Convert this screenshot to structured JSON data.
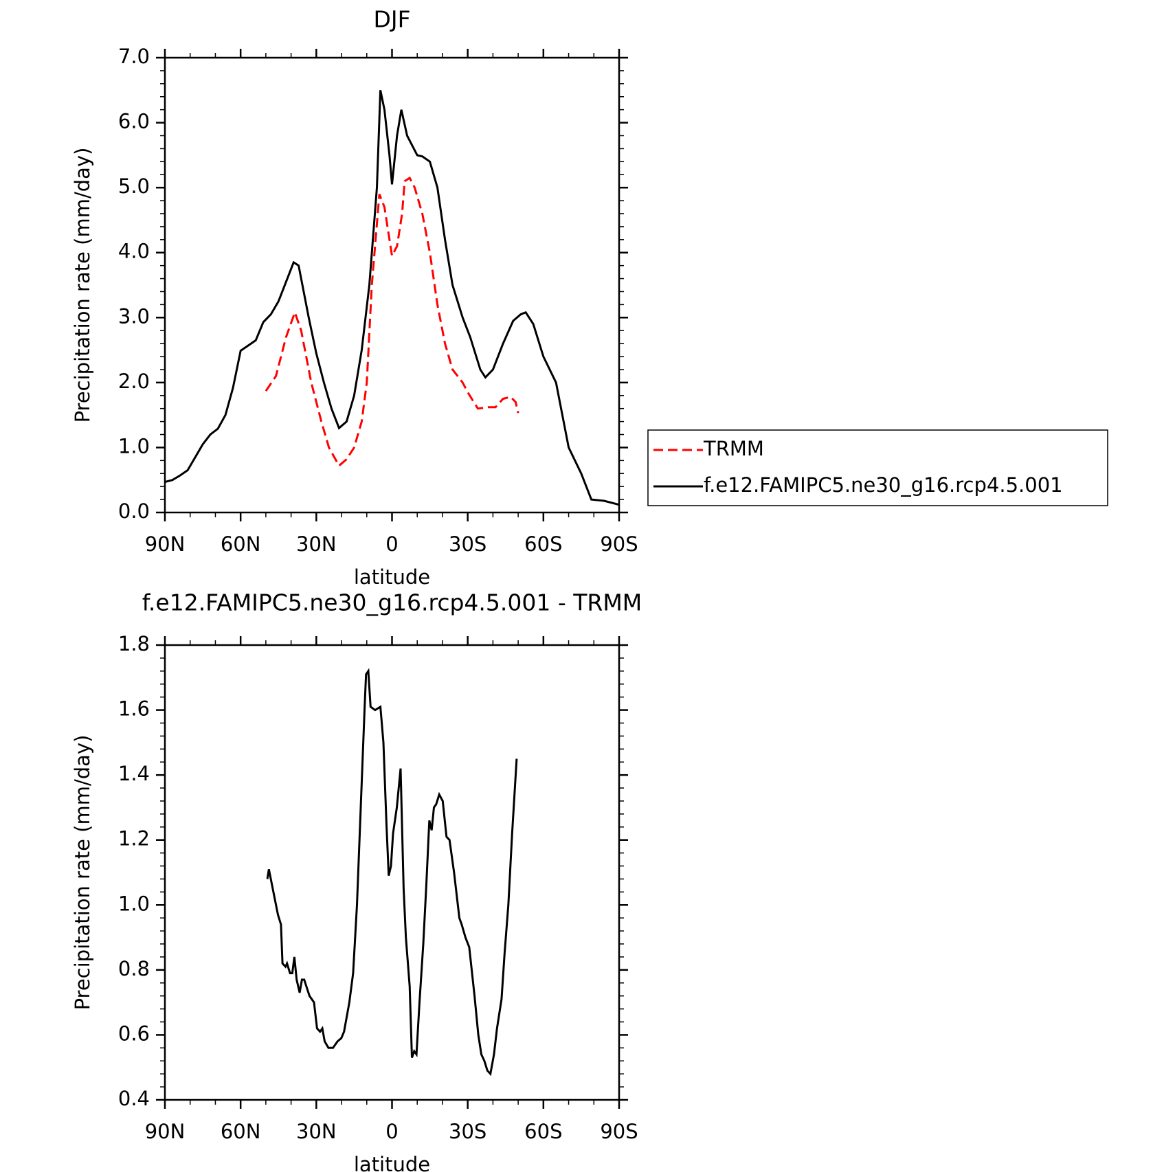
{
  "chart_data": [
    {
      "type": "line",
      "title": "DJF",
      "x_label": "latitude",
      "y_label": "Precipitation rate (mm/day)",
      "xlim": [
        90,
        -90
      ],
      "xticks": [
        {
          "value": 90,
          "label": "90N"
        },
        {
          "value": 60,
          "label": "60N"
        },
        {
          "value": 30,
          "label": "30N"
        },
        0,
        {
          "value": -30,
          "label": "30S"
        },
        {
          "value": -60,
          "label": "60S"
        },
        {
          "value": -90,
          "label": "90S"
        }
      ],
      "ylim": [
        0,
        7
      ],
      "yticks": [
        {
          "value": 0,
          "label": "0.0"
        },
        {
          "value": 1,
          "label": "1.0"
        },
        {
          "value": 2,
          "label": "2.0"
        },
        {
          "value": 3,
          "label": "3.0"
        },
        {
          "value": 4,
          "label": "4.0"
        },
        {
          "value": 5,
          "label": "5.0"
        },
        {
          "value": 6,
          "label": "6.0"
        },
        {
          "value": 7,
          "label": "7.0"
        }
      ],
      "legend": "outside-right",
      "series": [
        {
          "name": "TRMM",
          "color": "#ff0000",
          "linestyle": "dashed",
          "x": [
            50,
            46,
            42,
            38.5,
            36,
            32,
            28,
            25,
            21,
            18,
            15,
            12,
            10,
            8,
            5,
            3,
            0,
            -2,
            -4,
            -5,
            -7,
            -9,
            -12,
            -15,
            -18,
            -21,
            -24,
            -28,
            -30,
            -34,
            -38,
            -41,
            -44,
            -47,
            -49,
            -50
          ],
          "values": [
            1.87,
            2.1,
            2.7,
            3.08,
            2.8,
            2.0,
            1.4,
            1.0,
            0.72,
            0.82,
            1.0,
            1.4,
            2.0,
            3.5,
            4.9,
            4.7,
            3.95,
            4.1,
            4.6,
            5.1,
            5.15,
            5.0,
            4.6,
            4.0,
            3.2,
            2.6,
            2.2,
            2.0,
            1.85,
            1.6,
            1.62,
            1.62,
            1.75,
            1.78,
            1.7,
            1.53
          ]
        },
        {
          "name": "f.e12.FAMIPC5.ne30_g16.rcp4.5.001",
          "color": "#000000",
          "linestyle": "solid",
          "x": [
            90,
            87,
            84,
            81,
            78,
            75,
            72,
            69,
            66,
            63,
            60,
            57,
            54,
            51,
            48,
            45,
            42,
            39,
            37,
            33,
            30,
            27,
            24,
            21,
            18,
            15,
            12,
            9,
            6,
            4.6,
            3,
            1,
            0,
            -2,
            -3.7,
            -6,
            -10,
            -12,
            -15,
            -18,
            -21,
            -24,
            -28,
            -31,
            -35,
            -37,
            -40,
            -44,
            -48,
            -51,
            -53,
            -56,
            -60,
            -65,
            -70,
            -75,
            -79,
            -84,
            -90
          ],
          "values": [
            0.47,
            0.5,
            0.57,
            0.65,
            0.85,
            1.05,
            1.2,
            1.29,
            1.5,
            1.92,
            2.49,
            2.57,
            2.65,
            2.93,
            3.05,
            3.25,
            3.55,
            3.85,
            3.8,
            3.0,
            2.45,
            2.0,
            1.6,
            1.3,
            1.4,
            1.8,
            2.5,
            3.5,
            5.0,
            6.5,
            6.2,
            5.5,
            5.05,
            5.8,
            6.2,
            5.8,
            5.5,
            5.48,
            5.4,
            5.0,
            4.2,
            3.5,
            3.0,
            2.7,
            2.2,
            2.08,
            2.2,
            2.6,
            2.95,
            3.05,
            3.08,
            2.9,
            2.4,
            2.0,
            1.0,
            0.6,
            0.2,
            0.18,
            0.12
          ]
        }
      ]
    },
    {
      "type": "line",
      "title": "f.e12.FAMIPC5.ne30_g16.rcp4.5.001 - TRMM",
      "x_label": "latitude",
      "y_label": "Precipitation rate (mm/day)",
      "xlim": [
        90,
        -90
      ],
      "xticks": [
        {
          "value": 90,
          "label": "90N"
        },
        {
          "value": 60,
          "label": "60N"
        },
        {
          "value": 30,
          "label": "30N"
        },
        0,
        {
          "value": -30,
          "label": "30S"
        },
        {
          "value": -60,
          "label": "60S"
        },
        {
          "value": -90,
          "label": "90S"
        }
      ],
      "ylim": [
        0.4,
        1.8
      ],
      "yticks": [
        0.4,
        0.6,
        0.8,
        {
          "value": 1,
          "label": "1.0"
        },
        1.2,
        1.4,
        1.6,
        1.8
      ],
      "series": [
        {
          "color": "#000000",
          "linestyle": "solid",
          "x": [
            49.4,
            48.8,
            47,
            45.2,
            44,
            43.4,
            42.2,
            41.6,
            40.4,
            39.5,
            38.7,
            37.8,
            36.6,
            35.7,
            34.8,
            32.7,
            30.9,
            29.7,
            28.5,
            27.6,
            26.7,
            25.2,
            23.4,
            21.6,
            20.1,
            19,
            16.9,
            15.4,
            13.9,
            12.4,
            10.9,
            10.3,
            9.4,
            8.5,
            6.7,
            4.6,
            3.4,
            2.2,
            1.3,
            0.4,
            -0.4,
            -1.9,
            -3.4,
            -4.6,
            -5.5,
            -7,
            -7.9,
            -8.8,
            -9.7,
            -10.9,
            -12.4,
            -13.6,
            -14.8,
            -15.7,
            -16.6,
            -17.5,
            -18.7,
            -20.1,
            -21.6,
            -22.8,
            -24.6,
            -26.7,
            -27.6,
            -29.1,
            -30.6,
            -32.7,
            -34.2,
            -35.4,
            -36.6,
            -37.8,
            -39,
            -40.4,
            -41.6,
            -43.4,
            -44.6,
            -46.1,
            -47.6,
            -49.4
          ],
          "values": [
            1.08,
            1.11,
            1.04,
            0.97,
            0.94,
            0.82,
            0.81,
            0.82,
            0.79,
            0.79,
            0.84,
            0.77,
            0.73,
            0.77,
            0.77,
            0.72,
            0.7,
            0.62,
            0.61,
            0.62,
            0.58,
            0.56,
            0.56,
            0.58,
            0.59,
            0.61,
            0.7,
            0.79,
            1.0,
            1.3,
            1.6,
            1.71,
            1.72,
            1.61,
            1.6,
            1.61,
            1.5,
            1.25,
            1.09,
            1.12,
            1.22,
            1.3,
            1.42,
            1.05,
            0.9,
            0.75,
            0.53,
            0.55,
            0.54,
            0.7,
            0.88,
            1.06,
            1.26,
            1.23,
            1.3,
            1.31,
            1.34,
            1.32,
            1.21,
            1.2,
            1.1,
            0.96,
            0.94,
            0.9,
            0.87,
            0.72,
            0.6,
            0.54,
            0.52,
            0.49,
            0.48,
            0.54,
            0.62,
            0.71,
            0.85,
            1.0,
            1.22,
            1.45
          ]
        }
      ]
    }
  ]
}
